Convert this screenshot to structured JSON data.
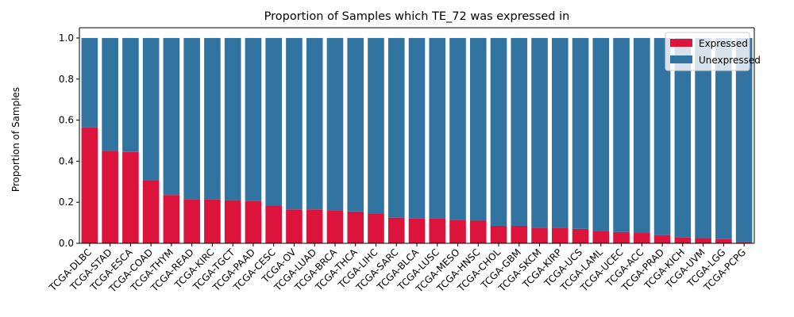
{
  "chart_data": {
    "type": "bar",
    "stacked": true,
    "title": "Proportion of Samples which TE_72 was expressed in",
    "xlabel": "",
    "ylabel": "Proportion of Samples",
    "ylim": [
      0,
      1.05
    ],
    "yticks": [
      "0.0",
      "0.2",
      "0.4",
      "0.6",
      "0.8",
      "1.0"
    ],
    "grid": false,
    "legend_position": "top-right",
    "categories": [
      "TCGA-DLBC",
      "TCGA-STAD",
      "TCGA-ESCA",
      "TCGA-COAD",
      "TCGA-THYM",
      "TCGA-READ",
      "TCGA-KIRC",
      "TCGA-TGCT",
      "TCGA-PAAD",
      "TCGA-CESC",
      "TCGA-OV",
      "TCGA-LUAD",
      "TCGA-BRCA",
      "TCGA-THCA",
      "TCGA-LIHC",
      "TCGA-SARC",
      "TCGA-BLCA",
      "TCGA-LUSC",
      "TCGA-MESO",
      "TCGA-HNSC",
      "TCGA-CHOL",
      "TCGA-GBM",
      "TCGA-SKCM",
      "TCGA-KIRP",
      "TCGA-UCS",
      "TCGA-LAML",
      "TCGA-UCEC",
      "TCGA-ACC",
      "TCGA-PRAD",
      "TCGA-KICH",
      "TCGA-UVM",
      "TCGA-LGG",
      "TCGA-PCPG"
    ],
    "series": [
      {
        "name": "Expressed",
        "color": "#dc143c",
        "values": [
          0.565,
          0.45,
          0.445,
          0.305,
          0.235,
          0.215,
          0.215,
          0.21,
          0.205,
          0.185,
          0.165,
          0.165,
          0.16,
          0.155,
          0.145,
          0.125,
          0.12,
          0.12,
          0.115,
          0.11,
          0.085,
          0.085,
          0.075,
          0.075,
          0.07,
          0.06,
          0.055,
          0.05,
          0.04,
          0.03,
          0.025,
          0.02,
          0.005
        ]
      },
      {
        "name": "Unexpressed",
        "color": "#3274a1",
        "values": [
          0.435,
          0.55,
          0.555,
          0.695,
          0.765,
          0.785,
          0.785,
          0.79,
          0.795,
          0.815,
          0.835,
          0.835,
          0.84,
          0.845,
          0.855,
          0.875,
          0.88,
          0.88,
          0.885,
          0.89,
          0.915,
          0.915,
          0.925,
          0.925,
          0.93,
          0.94,
          0.945,
          0.95,
          0.96,
          0.97,
          0.975,
          0.98,
          0.995
        ]
      }
    ]
  }
}
